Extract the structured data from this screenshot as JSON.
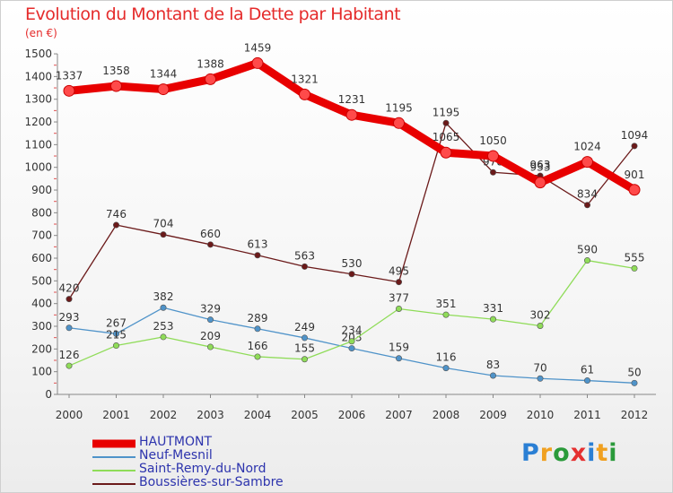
{
  "title": "Evolution du Montant de la Dette par Habitant",
  "unit": "(en €)",
  "logo": {
    "text": "Proxiti",
    "colors": [
      "#2a7fd4",
      "#f0a020",
      "#2a9a3a",
      "#e53030",
      "#2a7fd4",
      "#f0a020",
      "#2a9a3a"
    ]
  },
  "chart_data": {
    "type": "line",
    "x": [
      "2000",
      "2001",
      "2002",
      "2003",
      "2004",
      "2005",
      "2006",
      "2007",
      "2008",
      "2009",
      "2010",
      "2011",
      "2012"
    ],
    "ylim": [
      0,
      1500
    ],
    "yticks": [
      0,
      100,
      200,
      300,
      400,
      500,
      600,
      700,
      800,
      900,
      1000,
      1100,
      1200,
      1300,
      1400,
      1500
    ],
    "grid": false,
    "legend": "bottom-left",
    "series": [
      {
        "name": "HAUTMONT",
        "color": "#e80000",
        "values": [
          1337,
          1358,
          1344,
          1388,
          1459,
          1321,
          1231,
          1195,
          1065,
          1050,
          933,
          1024,
          901
        ]
      },
      {
        "name": "Neuf-Mesnil",
        "color": "#4f93c9",
        "values": [
          293,
          267,
          382,
          329,
          289,
          249,
          203,
          159,
          116,
          83,
          70,
          61,
          50
        ]
      },
      {
        "name": "Saint-Remy-du-Nord",
        "color": "#8fdc58",
        "values": [
          126,
          215,
          253,
          209,
          166,
          155,
          234,
          377,
          351,
          331,
          302,
          590,
          555
        ]
      },
      {
        "name": "Boussières-sur-Sambre",
        "color": "#6b1a1a",
        "values": [
          420,
          746,
          704,
          660,
          613,
          563,
          530,
          495,
          1195,
          978,
          963,
          834,
          1094
        ]
      }
    ]
  }
}
